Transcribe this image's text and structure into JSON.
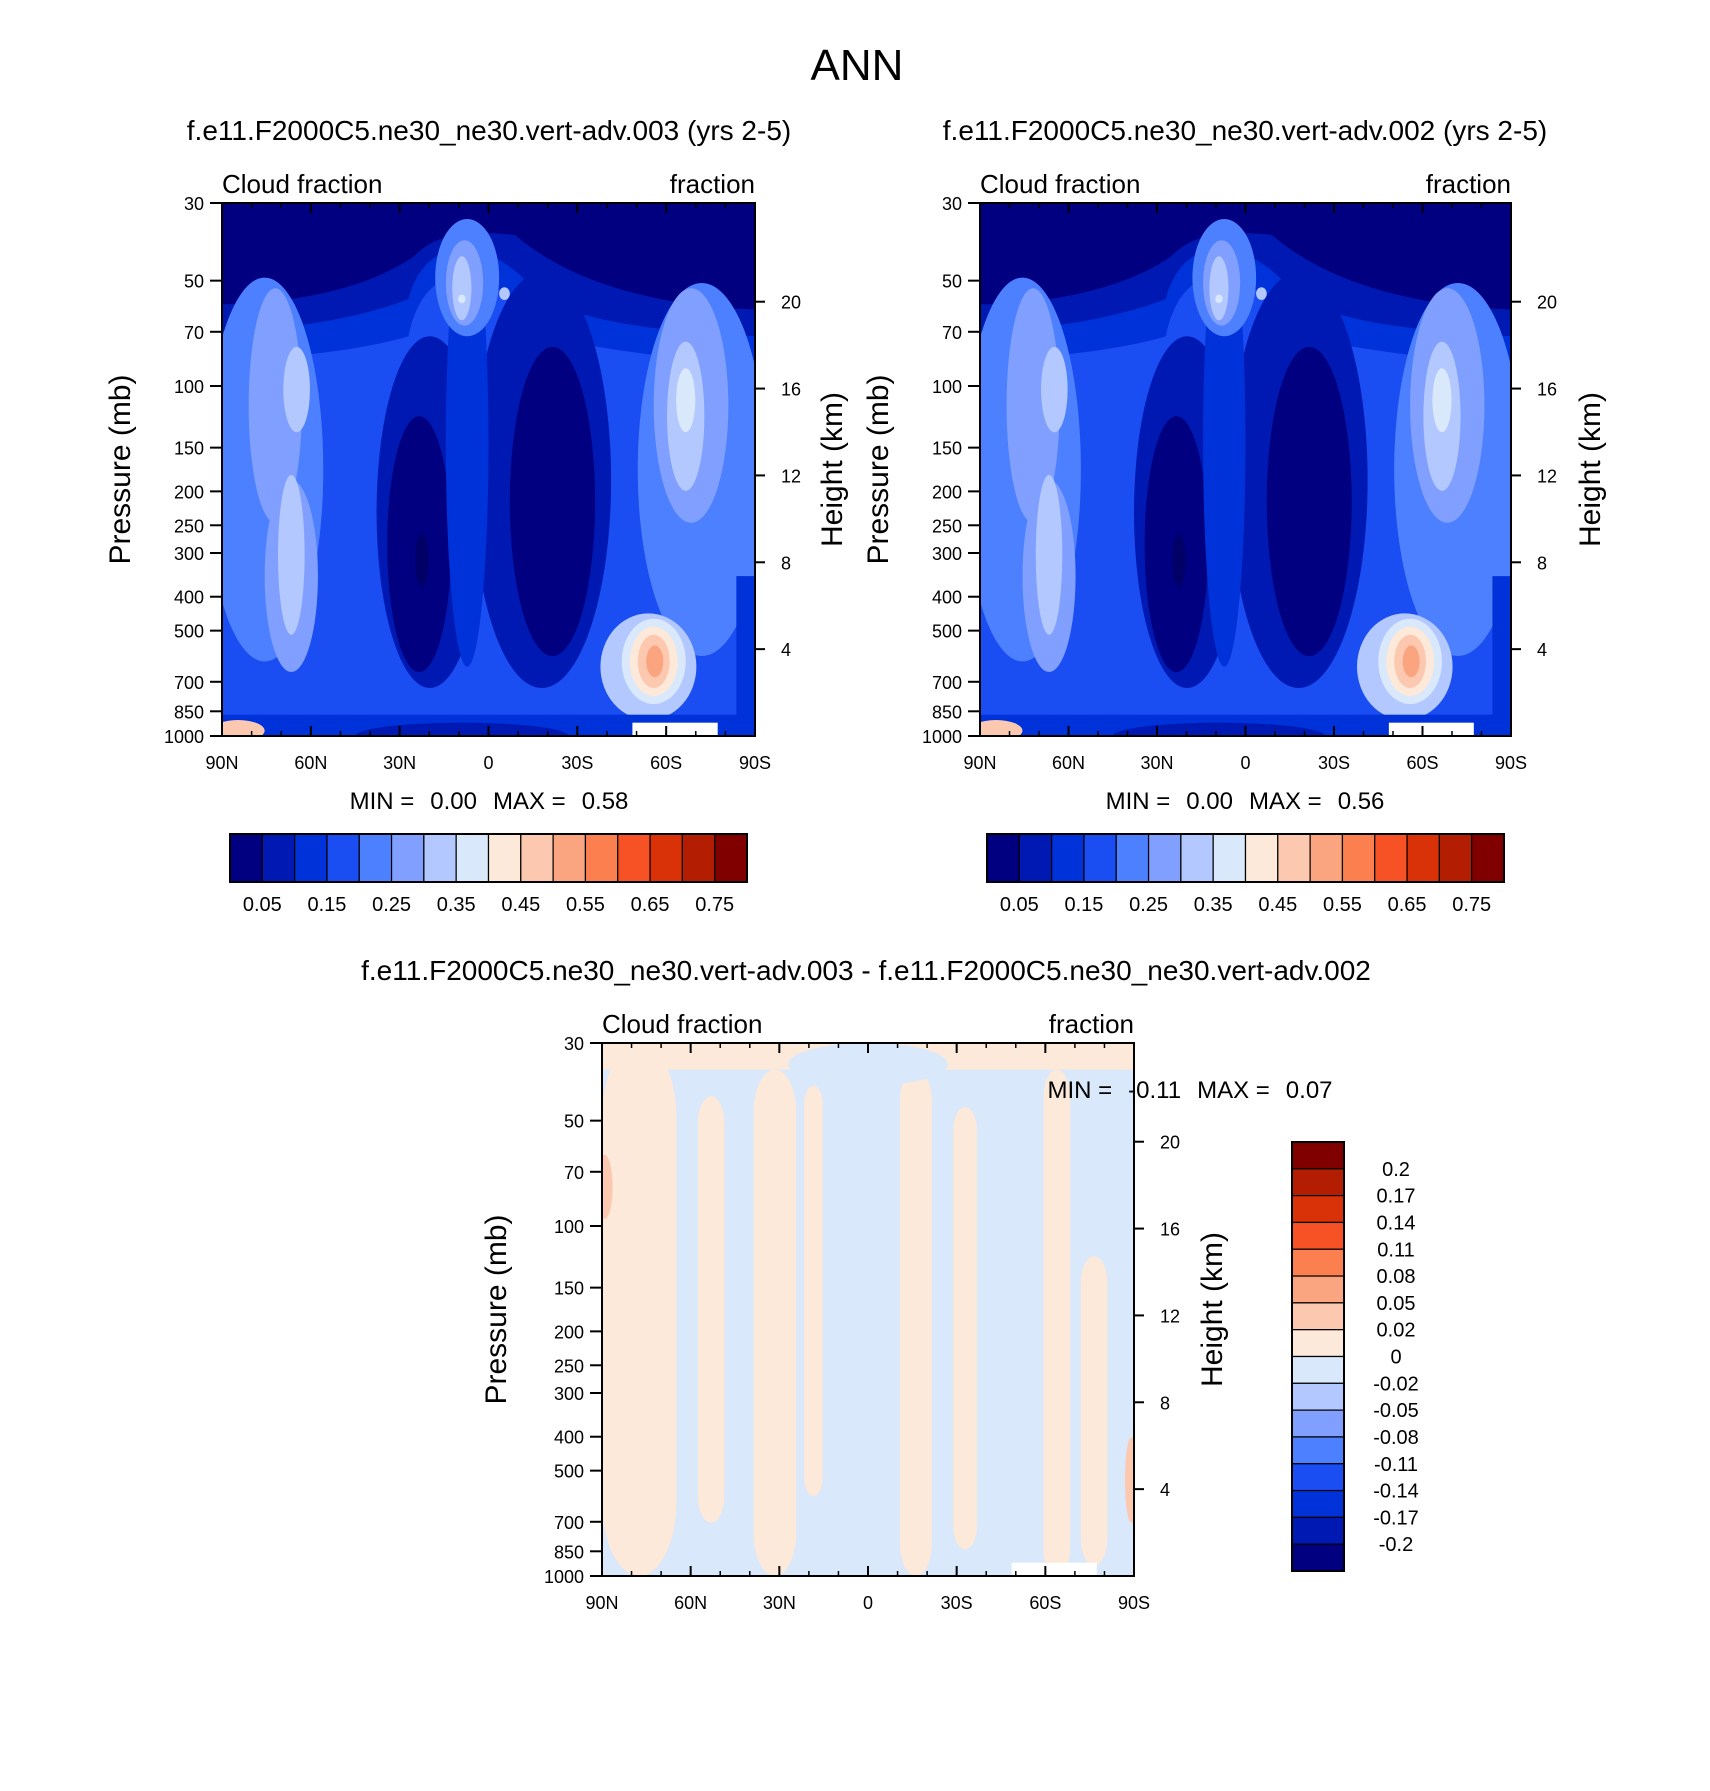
{
  "figure": {
    "title": "ANN"
  },
  "chart_data": [
    {
      "type": "heatmap",
      "title": "f.e11.F2000C5.ne30_ne30.vert-adv.003 (yrs 2-5)",
      "left_string": "Cloud fraction",
      "right_string": "fraction",
      "ylabel": "Pressure (mb)",
      "ylabel_right": "Height (km)",
      "x_ticks": [
        "90N",
        "60N",
        "30N",
        "0",
        "30S",
        "60S",
        "90S"
      ],
      "y_ticks": [
        "30",
        "50",
        "70",
        "100",
        "150",
        "200",
        "250",
        "300",
        "400",
        "500",
        "700",
        "850",
        "1000"
      ],
      "y_ticks_right": [
        "20",
        "16",
        "12",
        "8",
        "4"
      ],
      "min_label": "MIN =",
      "min_value": "0.00",
      "max_label": "MAX =",
      "max_value": "0.58",
      "colorbar": {
        "orientation": "horizontal",
        "labels": [
          "0.05",
          "0.15",
          "0.25",
          "0.35",
          "0.45",
          "0.55",
          "0.65",
          "0.75"
        ],
        "colors": [
          "#000080",
          "#0019b3",
          "#0032d9",
          "#1a4df2",
          "#4d80ff",
          "#809fff",
          "#b3c8ff",
          "#d9e8fa",
          "#fde9d9",
          "#fcc9b0",
          "#fba580",
          "#fb7f4f",
          "#f75225",
          "#d93208",
          "#b31e02",
          "#800000"
        ]
      }
    },
    {
      "type": "heatmap",
      "title": "f.e11.F2000C5.ne30_ne30.vert-adv.002 (yrs 2-5)",
      "left_string": "Cloud fraction",
      "right_string": "fraction",
      "ylabel": "Pressure (mb)",
      "ylabel_right": "Height (km)",
      "x_ticks": [
        "90N",
        "60N",
        "30N",
        "0",
        "30S",
        "60S",
        "90S"
      ],
      "y_ticks": [
        "30",
        "50",
        "70",
        "100",
        "150",
        "200",
        "250",
        "300",
        "400",
        "500",
        "700",
        "850",
        "1000"
      ],
      "y_ticks_right": [
        "20",
        "16",
        "12",
        "8",
        "4"
      ],
      "min_label": "MIN =",
      "min_value": "0.00",
      "max_label": "MAX =",
      "max_value": "0.56",
      "colorbar": {
        "orientation": "horizontal",
        "labels": [
          "0.05",
          "0.15",
          "0.25",
          "0.35",
          "0.45",
          "0.55",
          "0.65",
          "0.75"
        ],
        "colors": [
          "#000080",
          "#0019b3",
          "#0032d9",
          "#1a4df2",
          "#4d80ff",
          "#809fff",
          "#b3c8ff",
          "#d9e8fa",
          "#fde9d9",
          "#fcc9b0",
          "#fba580",
          "#fb7f4f",
          "#f75225",
          "#d93208",
          "#b31e02",
          "#800000"
        ]
      }
    },
    {
      "type": "heatmap",
      "title": "f.e11.F2000C5.ne30_ne30.vert-adv.003 - f.e11.F2000C5.ne30_ne30.vert-adv.002",
      "left_string": "Cloud fraction",
      "right_string": "fraction",
      "ylabel": "Pressure (mb)",
      "ylabel_right": "Height (km)",
      "x_ticks": [
        "90N",
        "60N",
        "30N",
        "0",
        "30S",
        "60S",
        "90S"
      ],
      "y_ticks": [
        "30",
        "50",
        "70",
        "100",
        "150",
        "200",
        "250",
        "300",
        "400",
        "500",
        "700",
        "850",
        "1000"
      ],
      "y_ticks_right": [
        "20",
        "16",
        "12",
        "8",
        "4"
      ],
      "min_label": "MIN =",
      "min_value": "-0.11",
      "max_label": "MAX =",
      "max_value": "0.07",
      "colorbar": {
        "orientation": "vertical",
        "labels": [
          "0.2",
          "0.17",
          "0.14",
          "0.11",
          "0.08",
          "0.05",
          "0.02",
          "0",
          "-0.02",
          "-0.05",
          "-0.08",
          "-0.11",
          "-0.14",
          "-0.17",
          "-0.2"
        ],
        "colors": [
          "#800000",
          "#b31e02",
          "#d93208",
          "#f75225",
          "#fb7f4f",
          "#fba580",
          "#fcc9b0",
          "#fde9d9",
          "#d9e8fa",
          "#b3c8ff",
          "#809fff",
          "#4d80ff",
          "#1a4df2",
          "#0032d9",
          "#0019b3",
          "#000080"
        ]
      }
    }
  ]
}
